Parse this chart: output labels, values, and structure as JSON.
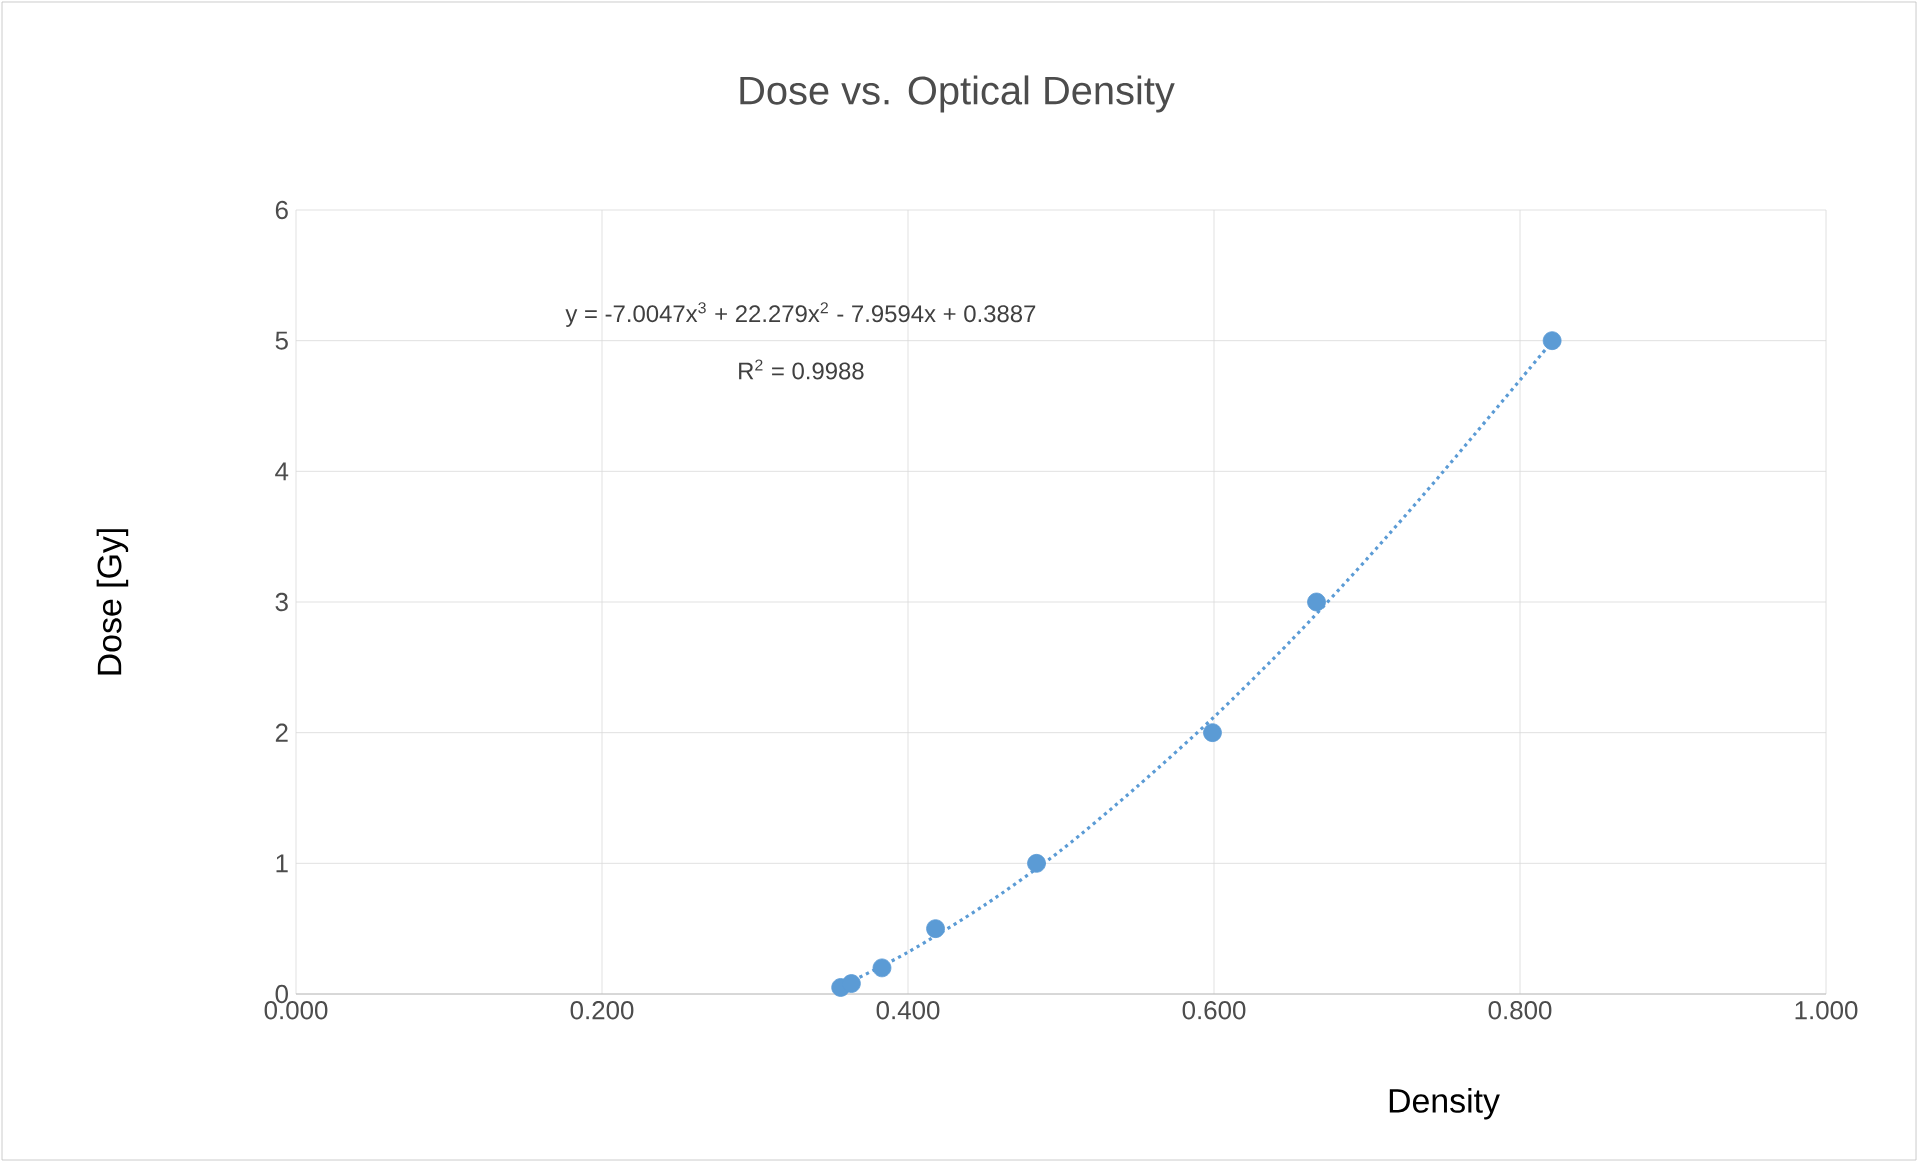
{
  "chart_data": {
    "type": "scatter",
    "title": "Dose vs. Optical Density",
    "xlabel": "Density",
    "ylabel": "Dose [Gy]",
    "annotations": [
      "y = -7.0047x$^{3}$ + 22.279x$^{2}$ - 7.9594x + 0.3887",
      "R$^{2}$ = 0.9988"
    ],
    "grid": true,
    "xlim": [
      0,
      1
    ],
    "ylim": [
      0,
      6
    ],
    "xticks": [
      {
        "value": 0,
        "label": "0.000"
      },
      {
        "value": 0.2,
        "label": "0.200"
      },
      {
        "value": 0.4,
        "label": "0.400"
      },
      {
        "value": 0.6,
        "label": "0.600"
      },
      {
        "value": 0.8,
        "label": "0.800"
      },
      {
        "value": 1,
        "label": "1.000"
      }
    ],
    "yticks": [
      0,
      1,
      2,
      3,
      4,
      5,
      6
    ],
    "series": [
      {
        "marker": "circle",
        "color": "#5b9bd5",
        "x": [
          0.356,
          0.363,
          0.383,
          0.418,
          0.484,
          0.599,
          0.667,
          0.821
        ],
        "values": [
          0.05,
          0.08,
          0.2,
          0.5,
          1,
          2,
          3,
          5
        ]
      },
      {
        "type": "line",
        "marker": "none",
        "line_style": "dotted",
        "color": "#5b9bd5",
        "x": [
          0.36,
          0.4,
          0.45,
          0.5,
          0.55,
          0.6,
          0.65,
          0.7,
          0.75,
          0.82
        ],
        "values": [
          0.08,
          0.32,
          0.68,
          1.1,
          1.59,
          2.12,
          2.7,
          3.33,
          4.0,
          4.98
        ]
      }
    ]
  }
}
